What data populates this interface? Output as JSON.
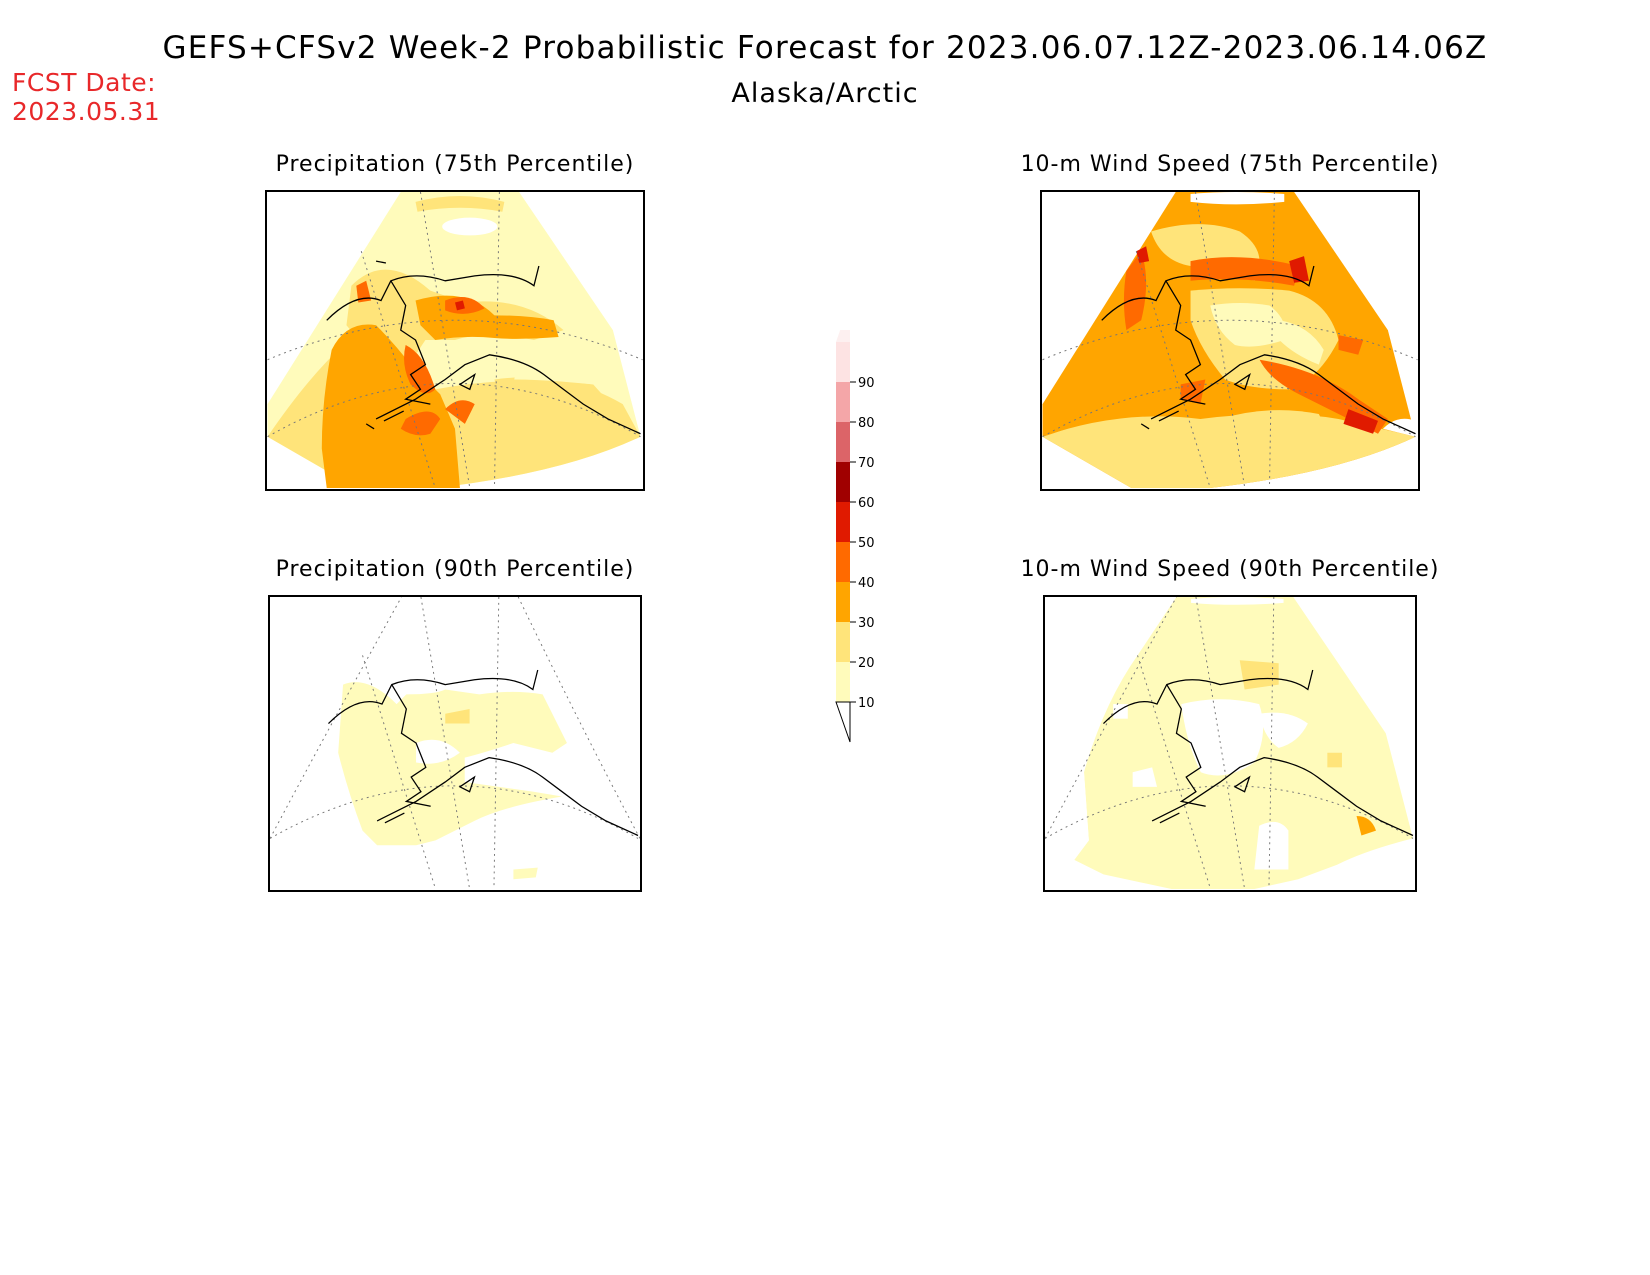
{
  "header": {
    "title": "GEFS+CFSv2 Week-2 Probabilistic Forecast for 2023.06.07.12Z-2023.06.14.06Z",
    "region": "Alaska/Arctic",
    "fcst_label": "FCST Date:",
    "fcst_date": "2023.05.31"
  },
  "panels": [
    {
      "title": "Precipitation (75th Percentile)"
    },
    {
      "title": "10-m Wind Speed (75th Percentile)"
    },
    {
      "title": "Precipitation (90th Percentile)"
    },
    {
      "title": "10-m Wind Speed (90th Percentile)"
    }
  ],
  "colorbar": {
    "ticks": [
      "10",
      "20",
      "30",
      "40",
      "50",
      "60",
      "70",
      "80",
      "90"
    ],
    "colors": [
      "#fffbbb",
      "#ffe47a",
      "#ffa500",
      "#ff6a00",
      "#e01a00",
      "#a00000",
      "#dc6468",
      "#f4a6a8",
      "#fde3e3"
    ]
  }
}
